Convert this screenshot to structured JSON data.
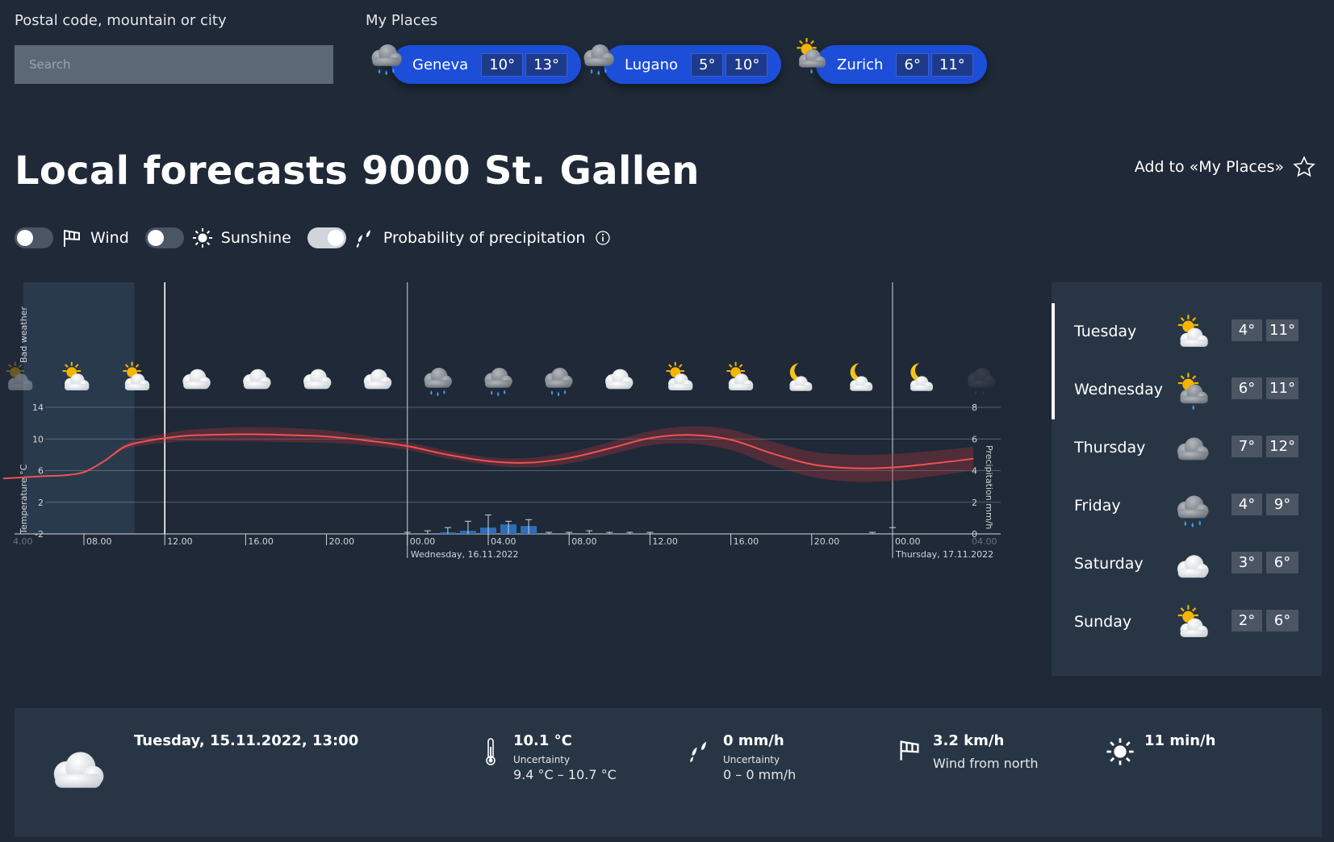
{
  "search": {
    "label": "Postal code, mountain or city",
    "placeholder": "Search"
  },
  "my_places": {
    "label": "My Places",
    "items": [
      {
        "name": "Geneva",
        "min": "10°",
        "max": "13°",
        "icon": "cloud-rain-icon"
      },
      {
        "name": "Lugano",
        "min": "5°",
        "max": "10°",
        "icon": "cloud-rain-icon"
      },
      {
        "name": "Zurich",
        "min": "6°",
        "max": "11°",
        "icon": "sun-cloud-rain-icon"
      }
    ]
  },
  "title": "Local forecasts 9000 St. Gallen",
  "add_to_places": "Add to «My Places»",
  "toggles": {
    "wind": {
      "label": "Wind",
      "on": false
    },
    "sunshine": {
      "label": "Sunshine",
      "on": false
    },
    "precip": {
      "label": "Probability of precipitation",
      "on": true
    }
  },
  "chart_data": {
    "type": "line",
    "left_axis_label": "Temperature °C",
    "right_axis_label": "Precipitation mm/h",
    "top_label": "Bad weather",
    "temp_ticks": [
      "14",
      "10",
      "6",
      "2",
      "-2"
    ],
    "precip_ticks": [
      "8",
      "6",
      "4",
      "2",
      "0"
    ],
    "x_ticks": [
      "08.00",
      "12.00",
      "16.00",
      "20.00",
      "00.00",
      "04.00",
      "08.00",
      "12.00",
      "16.00",
      "20.00",
      "00.00"
    ],
    "left_edge_tick": "4.00",
    "right_edge_tick": "04.00",
    "day_labels": [
      "Wednesday, 16.11.2022",
      "Thursday, 17.11.2022"
    ],
    "temperature_series": {
      "hours": [
        4,
        6,
        7,
        8,
        9,
        10,
        11,
        12,
        13,
        14,
        16,
        18,
        20,
        22,
        24,
        26,
        28,
        30,
        32,
        34,
        36,
        38,
        40,
        42,
        44,
        46,
        48,
        50,
        52
      ],
      "values": [
        5.0,
        5.3,
        5.4,
        5.8,
        7.2,
        9.0,
        9.7,
        10.1,
        10.4,
        10.5,
        10.6,
        10.5,
        10.3,
        9.8,
        9.1,
        8.0,
        7.2,
        7.0,
        7.6,
        8.8,
        10.1,
        10.5,
        9.9,
        8.2,
        6.8,
        6.3,
        6.4,
        6.9,
        7.5
      ],
      "uncertainty": [
        0.0,
        0.0,
        0.0,
        0.0,
        0.1,
        0.3,
        0.5,
        0.6,
        0.7,
        0.8,
        0.9,
        0.9,
        0.8,
        0.6,
        0.5,
        0.5,
        0.5,
        0.6,
        0.7,
        0.8,
        0.9,
        1.1,
        1.3,
        1.5,
        1.6,
        1.7,
        1.7,
        1.6,
        1.5
      ]
    },
    "precip_bars": {
      "hours": [
        24,
        25,
        26,
        27,
        28,
        29,
        30,
        31,
        32,
        33,
        34,
        35,
        36,
        47,
        48
      ],
      "values": [
        0.0,
        0.0,
        0.1,
        0.2,
        0.4,
        0.6,
        0.5,
        0.0,
        0.0,
        0.0,
        0.0,
        0.0,
        0.0,
        0.0,
        0.0
      ],
      "upper": [
        0.1,
        0.2,
        0.4,
        0.8,
        1.2,
        0.8,
        0.9,
        0.1,
        0.1,
        0.2,
        0.1,
        0.1,
        0.1,
        0.1,
        0.4
      ]
    },
    "weather_icons": [
      "sun-cloud",
      "sun-cloud",
      "cloud",
      "cloud",
      "cloud",
      "cloud",
      "cloud-rain",
      "cloud-rain",
      "cloud-rain",
      "cloud",
      "sun-cloud",
      "sun-cloud",
      "moon-cloud",
      "moon-cloud",
      "moon-cloud",
      "dark-cloud"
    ],
    "current_time_hour": 12,
    "past_shade_hours": [
      5,
      10.5
    ],
    "ylim": [
      -2,
      14
    ],
    "precip_ylim": [
      0,
      8
    ]
  },
  "days": [
    {
      "name": "Tuesday",
      "min": "4°",
      "max": "11°",
      "icon": "sun-cloud-icon",
      "active": true
    },
    {
      "name": "Wednesday",
      "min": "6°",
      "max": "11°",
      "icon": "sun-cloud-rain-icon",
      "active": true
    },
    {
      "name": "Thursday",
      "min": "7°",
      "max": "12°",
      "icon": "cloud-icon",
      "active": false
    },
    {
      "name": "Friday",
      "min": "4°",
      "max": "9°",
      "icon": "cloud-rain-icon",
      "active": false
    },
    {
      "name": "Saturday",
      "min": "3°",
      "max": "6°",
      "icon": "cloud-icon",
      "active": false
    },
    {
      "name": "Sunday",
      "min": "2°",
      "max": "6°",
      "icon": "sun-cloud-icon",
      "active": false
    }
  ],
  "detail": {
    "datetime": "Tuesday, 15.11.2022, 13:00",
    "temperature": {
      "value": "10.1 °C",
      "uncertainty_label": "Uncertainty",
      "range": "9.4 °C – 10.7 °C"
    },
    "precipitation": {
      "value": "0 mm/h",
      "uncertainty_label": "Uncertainty",
      "range": "0 – 0 mm/h"
    },
    "wind": {
      "value": "3.2 km/h",
      "direction": "Wind from north"
    },
    "sunshine": {
      "value": "11 min/h"
    }
  },
  "colors": {
    "background": "#1f2937",
    "accent_blue": "#1d4ed8",
    "temp_line": "#ef4444",
    "precip_bar": "#2563eb",
    "panel": "#283545"
  }
}
